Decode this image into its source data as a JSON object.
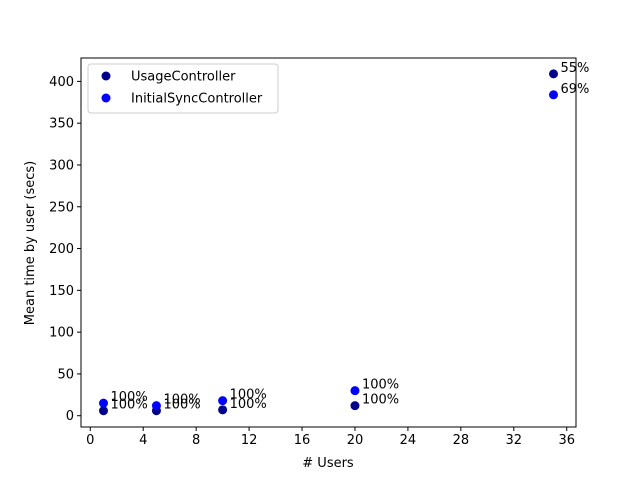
{
  "chart_data": {
    "type": "scatter",
    "title": "",
    "xlabel": "# Users",
    "ylabel": "Mean time by user (secs)",
    "xlim": [
      -0.7,
      36.7
    ],
    "ylim": [
      -13.5,
      428
    ],
    "xticks": [
      0,
      4,
      8,
      12,
      16,
      20,
      24,
      28,
      32,
      36
    ],
    "yticks": [
      0,
      50,
      100,
      150,
      200,
      250,
      300,
      350,
      400
    ],
    "grid": false,
    "legend_position": "top-left",
    "series": [
      {
        "name": "UsageController",
        "color": "#00008b",
        "points": [
          {
            "x": 1,
            "y": 6,
            "label": "100%"
          },
          {
            "x": 5,
            "y": 6,
            "label": "100%"
          },
          {
            "x": 10,
            "y": 7,
            "label": "100%"
          },
          {
            "x": 20,
            "y": 12,
            "label": "100%"
          },
          {
            "x": 35,
            "y": 409,
            "label": "55%"
          }
        ]
      },
      {
        "name": "InitialSyncController",
        "color": "#0000ff",
        "points": [
          {
            "x": 1,
            "y": 15,
            "label": "100%"
          },
          {
            "x": 5,
            "y": 12,
            "label": "100%"
          },
          {
            "x": 10,
            "y": 18,
            "label": "100%"
          },
          {
            "x": 20,
            "y": 30,
            "label": "100%"
          },
          {
            "x": 35,
            "y": 384,
            "label": "69%"
          }
        ]
      }
    ]
  }
}
